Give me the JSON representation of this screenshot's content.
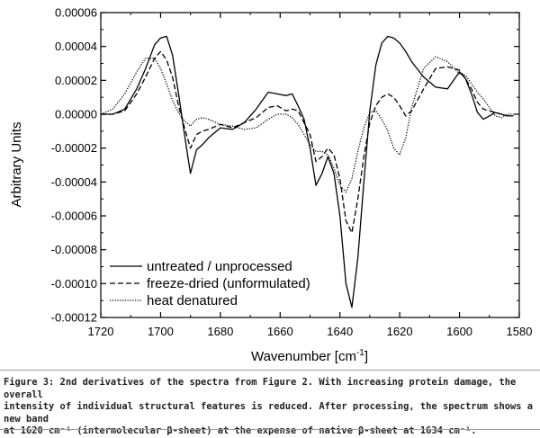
{
  "chart_data": {
    "type": "line",
    "xlabel": "Wavenumber [cm",
    "xlabel_sup": "-1",
    "xlabel_close": "]",
    "ylabel": "Arbitrary Units",
    "xlim": [
      1720,
      1580
    ],
    "ylim": [
      -0.00012,
      6e-05
    ],
    "xticks": [
      1720,
      1700,
      1680,
      1660,
      1640,
      1620,
      1600,
      1580
    ],
    "yticks": [
      "0.00006",
      "0.00004",
      "0.00002",
      "0.00000",
      "-0.00002",
      "-0.00004",
      "-0.00006",
      "-0.00008",
      "-0.00010",
      "-0.00012"
    ],
    "ytick_values": [
      6e-05,
      4e-05,
      2e-05,
      0,
      -2e-05,
      -4e-05,
      -6e-05,
      -8e-05,
      -0.0001,
      -0.00012
    ],
    "legend_position": "bottom-left",
    "series": [
      {
        "name": "untreated / unprocessed",
        "style": "solid",
        "x": [
          1720,
          1716,
          1712,
          1708,
          1705,
          1702,
          1700,
          1698,
          1696,
          1694,
          1692,
          1690,
          1688,
          1686,
          1684,
          1680,
          1676,
          1672,
          1668,
          1664,
          1661,
          1658,
          1656,
          1654,
          1652,
          1650,
          1648,
          1646,
          1644,
          1642,
          1640,
          1638,
          1636,
          1634,
          1632,
          1630,
          1628,
          1626,
          1624,
          1622,
          1620,
          1618,
          1616,
          1612,
          1608,
          1604,
          1600,
          1598,
          1596,
          1594,
          1592,
          1590,
          1588,
          1586,
          1584,
          1582
        ],
        "y": [
          0,
          0,
          3e-06,
          1.5e-05,
          2.7e-05,
          4.1e-05,
          4.5e-05,
          4.6e-05,
          3.5e-05,
          1.2e-05,
          -1.2e-05,
          -3.5e-05,
          -2.1e-05,
          -1.8e-05,
          -1.4e-05,
          -8e-06,
          -9e-06,
          -5e-06,
          3e-06,
          1.3e-05,
          1.2e-05,
          1.1e-05,
          1.2e-05,
          5e-06,
          -3e-06,
          -2e-05,
          -4.2e-05,
          -3.5e-05,
          -2.5e-05,
          -3.5e-05,
          -6e-05,
          -0.0001,
          -0.000114,
          -8.5e-05,
          -4e-05,
          2e-06,
          2.9e-05,
          4.2e-05,
          4.6e-05,
          4.5e-05,
          4.2e-05,
          3.7e-05,
          3.1e-05,
          2.2e-05,
          1.6e-05,
          1.5e-05,
          2.5e-05,
          2.1e-05,
          1.2e-05,
          1e-06,
          -3e-06,
          -1e-06,
          1e-06,
          0,
          -1e-06,
          -1e-06
        ]
      },
      {
        "name": "freeze-dried (unformulated)",
        "style": "dashed",
        "x": [
          1720,
          1716,
          1712,
          1708,
          1705,
          1702,
          1700,
          1698,
          1696,
          1694,
          1692,
          1690,
          1688,
          1686,
          1684,
          1680,
          1676,
          1672,
          1668,
          1664,
          1661,
          1658,
          1656,
          1654,
          1652,
          1650,
          1648,
          1646,
          1644,
          1642,
          1640,
          1638,
          1636,
          1634,
          1632,
          1630,
          1628,
          1626,
          1624,
          1622,
          1620,
          1618,
          1616,
          1612,
          1608,
          1604,
          1600,
          1598,
          1596,
          1594,
          1592,
          1590,
          1588,
          1586,
          1584,
          1582
        ],
        "y": [
          0,
          0,
          2e-06,
          1.2e-05,
          2.2e-05,
          3.3e-05,
          3.7e-05,
          3.2e-05,
          2.2e-05,
          5e-06,
          -8e-06,
          -2e-05,
          -1.2e-05,
          -1e-05,
          -9e-06,
          -6e-06,
          -8e-06,
          -5e-06,
          -2e-06,
          4e-06,
          5e-06,
          2e-06,
          3e-06,
          2e-06,
          -5e-06,
          -1.2e-05,
          -2.8e-05,
          -2.5e-05,
          -2e-05,
          -2.4e-05,
          -3.8e-05,
          -6.3e-05,
          -7e-05,
          -5e-05,
          -2.5e-05,
          -5e-06,
          5e-06,
          1e-05,
          1.2e-05,
          1e-05,
          5e-06,
          -1e-06,
          2e-06,
          1.5e-05,
          2.7e-05,
          2.8e-05,
          2.6e-05,
          2.1e-05,
          1.5e-05,
          7e-06,
          3e-06,
          2e-06,
          1e-06,
          0,
          -1e-06,
          -1e-06
        ]
      },
      {
        "name": "heat denatured",
        "style": "dotted",
        "x": [
          1720,
          1716,
          1712,
          1708,
          1705,
          1702,
          1700,
          1698,
          1696,
          1694,
          1692,
          1690,
          1688,
          1686,
          1684,
          1680,
          1676,
          1672,
          1668,
          1664,
          1661,
          1658,
          1656,
          1654,
          1652,
          1650,
          1648,
          1646,
          1644,
          1642,
          1640,
          1638,
          1636,
          1634,
          1632,
          1630,
          1628,
          1626,
          1624,
          1622,
          1620,
          1618,
          1616,
          1612,
          1608,
          1604,
          1600,
          1598,
          1596,
          1594,
          1592,
          1590,
          1588,
          1586,
          1584,
          1582
        ],
        "y": [
          0,
          3e-06,
          1.2e-05,
          2.5e-05,
          3.3e-05,
          3.3e-05,
          2.7e-05,
          1.8e-05,
          8e-06,
          1e-06,
          -4e-06,
          -7e-06,
          -3e-06,
          -2e-06,
          -3e-06,
          -6e-06,
          -7e-06,
          -9e-06,
          -8e-06,
          -3e-06,
          0,
          0,
          -2e-06,
          -6e-06,
          -1.2e-05,
          -1.8e-05,
          -2.2e-05,
          -2.2e-05,
          -2.4e-05,
          -3.2e-05,
          -4.2e-05,
          -4.6e-05,
          -3.8e-05,
          -2.2e-05,
          -8e-06,
          1e-06,
          2e-06,
          -3e-06,
          -1e-05,
          -2e-05,
          -2.4e-05,
          -1.4e-05,
          4e-06,
          2.7e-05,
          3.4e-05,
          3.1e-05,
          2.4e-05,
          2.3e-05,
          1.8e-05,
          1.3e-05,
          9e-06,
          4e-06,
          -1e-06,
          -2e-06,
          0,
          0
        ]
      }
    ]
  },
  "caption": {
    "lines": [
      "Figure 3: 2nd derivatives of the spectra from Figure 2. With increasing protein damage, the overall",
      "intensity of individual structural features is reduced. After processing, the spectrum shows a new band",
      "at 1620 cm⁻¹ (intermolecular β-sheet) at the expense of native β-sheet at 1634 cm⁻¹."
    ]
  }
}
